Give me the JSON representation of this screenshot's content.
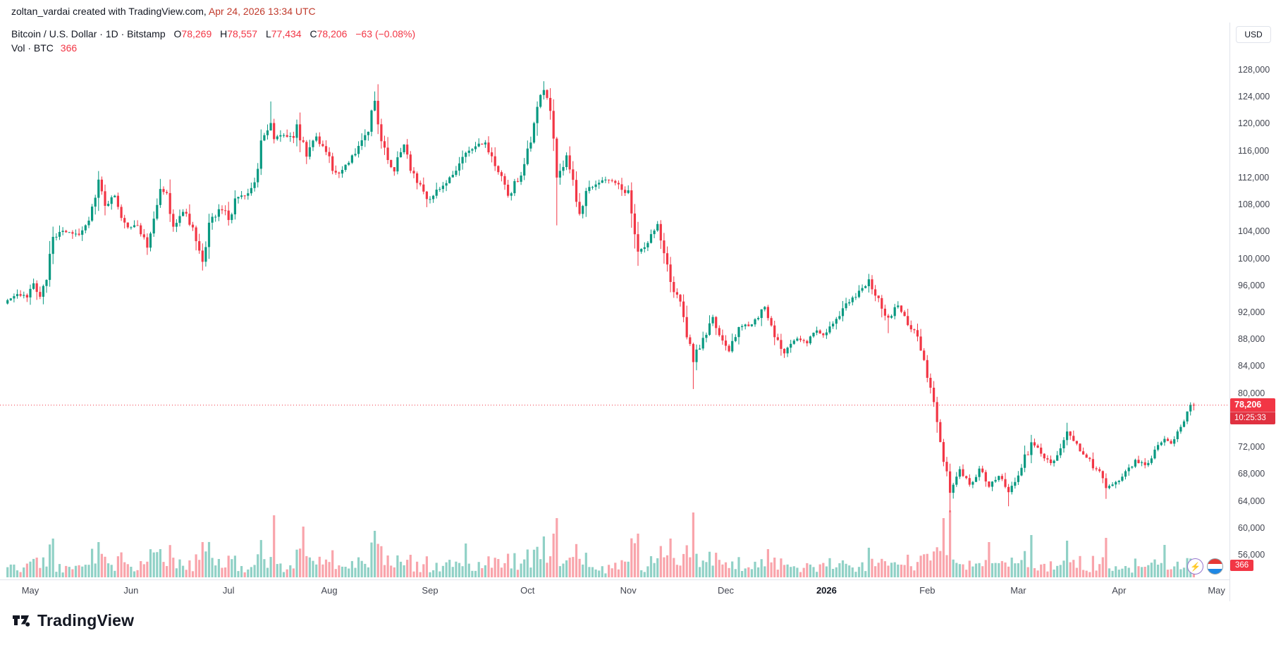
{
  "attribution": {
    "user_part": "zoltan_vardai created with TradingView.com,",
    "date_part": " Apr 24, 2026 13:34 UTC"
  },
  "legend": {
    "symbol_title": "Bitcoin / U.S. Dollar · 1D · Bitstamp",
    "o_label": "O",
    "o": "78,269",
    "h_label": "H",
    "h": "78,557",
    "l_label": "L",
    "l": "77,434",
    "c_label": "C",
    "c": "78,206",
    "change": "−63 (−0.08%)",
    "vol_label": "Vol · BTC",
    "vol_value": "366"
  },
  "price_axis": {
    "currency": "USD",
    "last_price": "78,206",
    "countdown": "10:25:33",
    "volume_badge": "366"
  },
  "footer": {
    "brand": "TradingView"
  },
  "chart_data": {
    "type": "candlestick",
    "title": "Bitcoin / U.S. Dollar",
    "exchange": "Bitstamp",
    "interval": "1D",
    "unit": "USD",
    "days": 366,
    "last": {
      "open": 78269,
      "high": 78557,
      "low": 77434,
      "close": 78206
    },
    "change": -63,
    "change_pct": -0.08,
    "volume_btc": 366,
    "y_axis": {
      "max": 128000,
      "min": 56000,
      "step": 4000
    },
    "y_ticks": [
      128000,
      124000,
      120000,
      116000,
      112000,
      108000,
      104000,
      100000,
      96000,
      92000,
      88000,
      84000,
      80000,
      72000,
      68000,
      64000,
      60000,
      56000
    ],
    "x_ticks": [
      {
        "label": "May",
        "day": 7
      },
      {
        "label": "Jun",
        "day": 38
      },
      {
        "label": "Jul",
        "day": 68
      },
      {
        "label": "Aug",
        "day": 99
      },
      {
        "label": "Sep",
        "day": 130
      },
      {
        "label": "Oct",
        "day": 160
      },
      {
        "label": "Nov",
        "day": 191
      },
      {
        "label": "Dec",
        "day": 221
      },
      {
        "label": "2026",
        "day": 252,
        "bold": true
      },
      {
        "label": "Feb",
        "day": 283
      },
      {
        "label": "Mar",
        "day": 311
      },
      {
        "label": "Apr",
        "day": 342
      },
      {
        "label": "May",
        "day": 372
      }
    ],
    "anchors": [
      [
        0,
        93800
      ],
      [
        3,
        94700
      ],
      [
        6,
        94200
      ],
      [
        8,
        96300
      ],
      [
        10,
        94300
      ],
      [
        12,
        96800
      ],
      [
        14,
        103200
      ],
      [
        17,
        104100
      ],
      [
        19,
        103900
      ],
      [
        22,
        103500
      ],
      [
        25,
        105600
      ],
      [
        28,
        111700
      ],
      [
        30,
        107800
      ],
      [
        33,
        109300
      ],
      [
        35,
        106000
      ],
      [
        37,
        104600
      ],
      [
        40,
        104900
      ],
      [
        43,
        101600
      ],
      [
        45,
        105900
      ],
      [
        47,
        110300
      ],
      [
        49,
        109700
      ],
      [
        51,
        104700
      ],
      [
        54,
        106900
      ],
      [
        57,
        104600
      ],
      [
        60,
        99500
      ],
      [
        62,
        105300
      ],
      [
        65,
        107300
      ],
      [
        67,
        107100
      ],
      [
        68,
        105700
      ],
      [
        70,
        108900
      ],
      [
        73,
        109300
      ],
      [
        76,
        111300
      ],
      [
        77,
        113300
      ],
      [
        78,
        117500
      ],
      [
        80,
        119000
      ],
      [
        81,
        120100
      ],
      [
        82,
        117700
      ],
      [
        85,
        118300
      ],
      [
        88,
        117900
      ],
      [
        89,
        119900
      ],
      [
        92,
        115100
      ],
      [
        95,
        118100
      ],
      [
        98,
        115800
      ],
      [
        100,
        113000
      ],
      [
        102,
        112600
      ],
      [
        105,
        114200
      ],
      [
        108,
        116700
      ],
      [
        111,
        118800
      ],
      [
        113,
        123400
      ],
      [
        115,
        117400
      ],
      [
        119,
        112900
      ],
      [
        122,
        116900
      ],
      [
        124,
        113000
      ],
      [
        126,
        111200
      ],
      [
        129,
        108800
      ],
      [
        131,
        109300
      ],
      [
        134,
        110800
      ],
      [
        139,
        114100
      ],
      [
        142,
        116000
      ],
      [
        147,
        117200
      ],
      [
        151,
        112800
      ],
      [
        154,
        109300
      ],
      [
        158,
        112300
      ],
      [
        159,
        114000
      ],
      [
        161,
        117200
      ],
      [
        163,
        122500
      ],
      [
        165,
        125000
      ],
      [
        167,
        121900
      ],
      [
        169,
        112000
      ],
      [
        172,
        115300
      ],
      [
        176,
        106600
      ],
      [
        179,
        110600
      ],
      [
        184,
        111700
      ],
      [
        188,
        111000
      ],
      [
        190,
        109700
      ],
      [
        191,
        110100
      ],
      [
        194,
        101000
      ],
      [
        197,
        102300
      ],
      [
        200,
        105100
      ],
      [
        203,
        99100
      ],
      [
        204,
        96500
      ],
      [
        207,
        93600
      ],
      [
        211,
        84600
      ],
      [
        214,
        88200
      ],
      [
        217,
        91300
      ],
      [
        220,
        87800
      ],
      [
        222,
        86200
      ],
      [
        225,
        89800
      ],
      [
        229,
        90200
      ],
      [
        233,
        92800
      ],
      [
        236,
        88300
      ],
      [
        239,
        85900
      ],
      [
        243,
        88100
      ],
      [
        246,
        87400
      ],
      [
        249,
        89300
      ],
      [
        251,
        88600
      ],
      [
        254,
        90300
      ],
      [
        257,
        92600
      ],
      [
        260,
        94200
      ],
      [
        263,
        95600
      ],
      [
        265,
        96900
      ],
      [
        268,
        94100
      ],
      [
        271,
        91200
      ],
      [
        274,
        93000
      ],
      [
        277,
        90100
      ],
      [
        280,
        88400
      ],
      [
        282,
        84900
      ],
      [
        284,
        80800
      ],
      [
        286,
        75700
      ],
      [
        288,
        69800
      ],
      [
        290,
        65200
      ],
      [
        293,
        68700
      ],
      [
        296,
        66400
      ],
      [
        299,
        68800
      ],
      [
        302,
        66100
      ],
      [
        305,
        67700
      ],
      [
        308,
        65300
      ],
      [
        310,
        66800
      ],
      [
        312,
        68900
      ],
      [
        315,
        72700
      ],
      [
        318,
        71000
      ],
      [
        321,
        69600
      ],
      [
        324,
        71800
      ],
      [
        326,
        74300
      ],
      [
        329,
        72500
      ],
      [
        332,
        70400
      ],
      [
        335,
        68700
      ],
      [
        338,
        65900
      ],
      [
        341,
        66800
      ],
      [
        344,
        68400
      ],
      [
        347,
        70100
      ],
      [
        350,
        69300
      ],
      [
        353,
        71600
      ],
      [
        356,
        73200
      ],
      [
        358,
        72500
      ],
      [
        360,
        74300
      ],
      [
        362,
        75800
      ],
      [
        364,
        78269
      ],
      [
        365,
        78206
      ]
    ],
    "extremes": [
      [
        28,
        112500,
        "h"
      ],
      [
        60,
        98200,
        "l"
      ],
      [
        81,
        123300,
        "h"
      ],
      [
        113,
        124500,
        "h"
      ],
      [
        165,
        126300,
        "h"
      ],
      [
        169,
        104900,
        "l"
      ],
      [
        194,
        98900,
        "l"
      ],
      [
        211,
        80600,
        "l"
      ],
      [
        265,
        97700,
        "h"
      ],
      [
        271,
        88900,
        "l"
      ],
      [
        290,
        62300,
        "l"
      ],
      [
        308,
        63200,
        "l"
      ],
      [
        315,
        73800,
        "h"
      ],
      [
        326,
        75600,
        "h"
      ],
      [
        338,
        64300,
        "l"
      ]
    ],
    "volume_spikes": [
      [
        14,
        55
      ],
      [
        28,
        50
      ],
      [
        60,
        50
      ],
      [
        82,
        88
      ],
      [
        91,
        72
      ],
      [
        113,
        66
      ],
      [
        141,
        48
      ],
      [
        165,
        58
      ],
      [
        169,
        84
      ],
      [
        194,
        62
      ],
      [
        204,
        55
      ],
      [
        211,
        92
      ],
      [
        234,
        40
      ],
      [
        265,
        42
      ],
      [
        288,
        84
      ],
      [
        290,
        95
      ],
      [
        302,
        50
      ],
      [
        315,
        60
      ],
      [
        326,
        52
      ],
      [
        338,
        56
      ],
      [
        356,
        46
      ]
    ],
    "colors": {
      "up": "#089981",
      "down": "#f23645",
      "vol_up": "rgba(8,153,129,0.45)",
      "vol_down": "rgba(242,54,69,0.45)",
      "last_price_bg": "#f23645",
      "dotted_line": "#f23645"
    }
  }
}
